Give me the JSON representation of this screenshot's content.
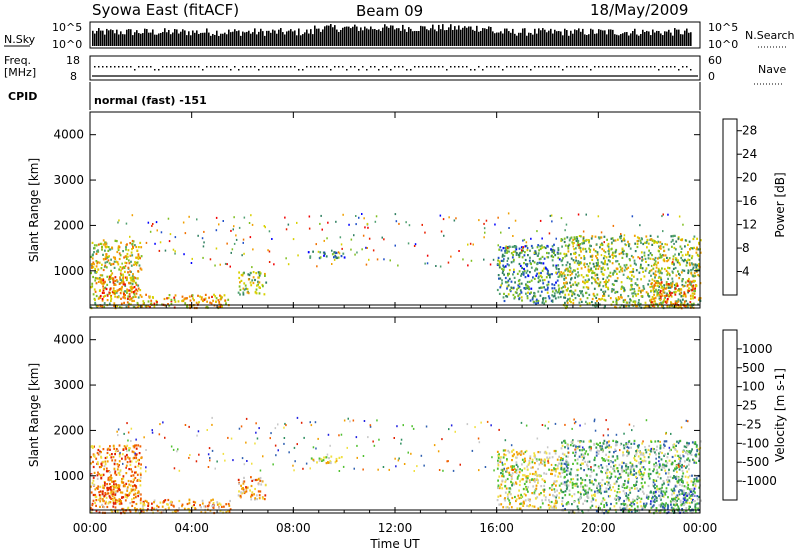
{
  "header": {
    "station": "Syowa East (fitACF)",
    "beam": "Beam 09",
    "date": "18/May/2009"
  },
  "strip_labels": {
    "nsky": "N.Sky",
    "nsky_tick_top": "10^5",
    "nsky_tick_bottom": "10^0",
    "nsearch": "N.Search",
    "nsearch_tick_top": "10^5",
    "nsearch_tick_bottom": "10^0",
    "freq_line1": "Freq.",
    "freq_line2": "[MHz]",
    "freq_tick_top": "18",
    "freq_tick_bottom": "8",
    "nave": "Nave",
    "nave_tick_top": "60",
    "nave_tick_bottom": "0",
    "cpid": "CPID",
    "cpid_value": "normal (fast) -151"
  },
  "colors": {
    "power_scale": [
      "#0000ff",
      "#2050c8",
      "#2f7f60",
      "#4f9f70",
      "#7fbf20",
      "#d8d000",
      "#f0a000",
      "#f07000",
      "#e82000",
      "#f00000"
    ],
    "velocity_scale": [
      "#2020e0",
      "#3060b0",
      "#2f8f5f",
      "#50c030",
      "#c8c8c8",
      "#f0e040",
      "#f0a000",
      "#f06000",
      "#e02000"
    ]
  },
  "chart_data": [
    {
      "type": "heatmap",
      "title": "Power",
      "ylabel": "Slant Range [km]",
      "xlabel": "",
      "x_ticks": [
        "00:00",
        "04:00",
        "08:00",
        "12:00",
        "16:00",
        "20:00",
        "00:00"
      ],
      "xlim_hours": [
        0,
        24
      ],
      "y_ticks": [
        "1000",
        "2000",
        "3000",
        "4000"
      ],
      "ylim_km": [
        180,
        4500
      ],
      "colorbar": {
        "label": "Power [dB]",
        "ticks": [
          "4",
          "8",
          "12",
          "16",
          "20",
          "24",
          "28"
        ],
        "range": [
          0,
          30
        ],
        "position": "right"
      },
      "regions": [
        {
          "t0": 0.0,
          "t1": 2.0,
          "r0": 200,
          "r1": 1700,
          "level": 0.55
        },
        {
          "t0": 0.3,
          "t1": 1.8,
          "r0": 400,
          "r1": 900,
          "level": 0.75
        },
        {
          "t0": 2.0,
          "t1": 5.5,
          "r0": 200,
          "r1": 500,
          "level": 0.65
        },
        {
          "t0": 5.8,
          "t1": 6.9,
          "r0": 500,
          "r1": 1000,
          "level": 0.45
        },
        {
          "t0": 8.5,
          "t1": 10.0,
          "r0": 1300,
          "r1": 1450,
          "level": 0.25
        },
        {
          "t0": 16.0,
          "t1": 18.5,
          "r0": 300,
          "r1": 1600,
          "level": 0.3
        },
        {
          "t0": 18.5,
          "t1": 24.0,
          "r0": 200,
          "r1": 1800,
          "level": 0.45
        },
        {
          "t0": 22.0,
          "t1": 23.8,
          "r0": 200,
          "r1": 800,
          "level": 0.7
        }
      ]
    },
    {
      "type": "heatmap",
      "title": "Velocity",
      "ylabel": "Slant Range [km]",
      "xlabel": "Time UT",
      "x_ticks": [
        "00:00",
        "04:00",
        "08:00",
        "12:00",
        "16:00",
        "20:00",
        "00:00"
      ],
      "xlim_hours": [
        0,
        24
      ],
      "y_ticks": [
        "1000",
        "2000",
        "3000",
        "4000"
      ],
      "ylim_km": [
        180,
        4500
      ],
      "colorbar": {
        "label": "Velocity [m s-1]",
        "ticks": [
          "1000",
          "500",
          "100",
          "25",
          "-25",
          "-100",
          "-500",
          "-1000"
        ],
        "range": [
          -1000,
          1000
        ],
        "position": "right"
      },
      "regions": [
        {
          "t0": 0.0,
          "t1": 2.0,
          "r0": 200,
          "r1": 1700,
          "level": 0.75
        },
        {
          "t0": 0.3,
          "t1": 1.8,
          "r0": 400,
          "r1": 900,
          "level": 0.85
        },
        {
          "t0": 2.0,
          "t1": 5.5,
          "r0": 200,
          "r1": 500,
          "level": 0.7
        },
        {
          "t0": 5.8,
          "t1": 6.9,
          "r0": 500,
          "r1": 1000,
          "level": 0.7
        },
        {
          "t0": 8.5,
          "t1": 10.0,
          "r0": 1300,
          "r1": 1450,
          "level": 0.5
        },
        {
          "t0": 16.0,
          "t1": 18.5,
          "r0": 300,
          "r1": 1600,
          "level": 0.55
        },
        {
          "t0": 18.5,
          "t1": 24.0,
          "r0": 200,
          "r1": 1800,
          "level": 0.4
        },
        {
          "t0": 22.0,
          "t1": 23.8,
          "r0": 200,
          "r1": 800,
          "level": 0.3
        }
      ]
    }
  ]
}
